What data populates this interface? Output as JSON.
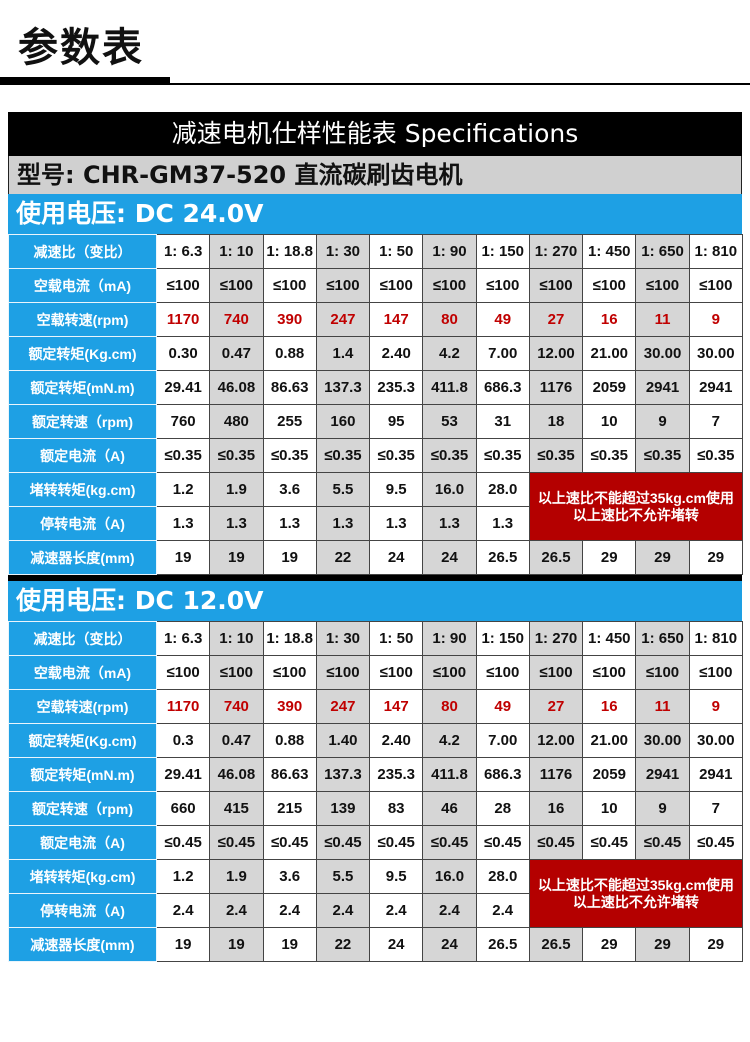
{
  "page_title": "参数表",
  "spec_title": "减速电机仕样性能表 Specifications",
  "model": "型号: CHR-GM37-520  直流碳刷齿电机",
  "sections": [
    {
      "voltage": "使用电压: DC 24.0V",
      "rows": [
        {
          "label": "减速比（变比）",
          "values": [
            "1: 6.3",
            "1: 10",
            "1: 18.8",
            "1: 30",
            "1: 50",
            "1: 90",
            "1: 150",
            "1: 270",
            "1: 450",
            "1: 650",
            "1: 810"
          ]
        },
        {
          "label": "空载电流（mA)",
          "values": [
            "≤100",
            "≤100",
            "≤100",
            "≤100",
            "≤100",
            "≤100",
            "≤100",
            "≤100",
            "≤100",
            "≤100",
            "≤100"
          ]
        },
        {
          "label": "空载转速(rpm)",
          "values": [
            "1170",
            "740",
            "390",
            "247",
            "147",
            "80",
            "49",
            "27",
            "16",
            "11",
            "9"
          ]
        },
        {
          "label": "额定转矩(Kg.cm)",
          "values": [
            "0.30",
            "0.47",
            "0.88",
            "1.4",
            "2.40",
            "4.2",
            "7.00",
            "12.00",
            "21.00",
            "30.00",
            "30.00"
          ]
        },
        {
          "label": "额定转矩(mN.m)",
          "values": [
            "29.41",
            "46.08",
            "86.63",
            "137.3",
            "235.3",
            "411.8",
            "686.3",
            "1176",
            "2059",
            "2941",
            "2941"
          ]
        },
        {
          "label": "额定转速（rpm)",
          "values": [
            "760",
            "480",
            "255",
            "160",
            "95",
            "53",
            "31",
            "18",
            "10",
            "9",
            "7"
          ]
        },
        {
          "label": "额定电流（A)",
          "values": [
            "≤0.35",
            "≤0.35",
            "≤0.35",
            "≤0.35",
            "≤0.35",
            "≤0.35",
            "≤0.35",
            "≤0.35",
            "≤0.35",
            "≤0.35",
            "≤0.35"
          ]
        },
        {
          "label": "堵转转矩(kg.cm)",
          "values": [
            "1.2",
            "1.9",
            "3.6",
            "5.5",
            "9.5",
            "16.0",
            "28.0"
          ]
        },
        {
          "label": "停转电流（A)",
          "values": [
            "1.3",
            "1.3",
            "1.3",
            "1.3",
            "1.3",
            "1.3",
            "1.3"
          ]
        },
        {
          "label": "减速器长度(mm)",
          "values": [
            "19",
            "19",
            "19",
            "22",
            "24",
            "24",
            "26.5",
            "26.5",
            "29",
            "29",
            "29"
          ]
        }
      ],
      "note_line1": "以上速比不能超过35kg.cm使用",
      "note_line2": "以上速比不允许堵转"
    },
    {
      "voltage": "使用电压: DC 12.0V",
      "rows": [
        {
          "label": "减速比（变比）",
          "values": [
            "1: 6.3",
            "1: 10",
            "1: 18.8",
            "1: 30",
            "1: 50",
            "1: 90",
            "1: 150",
            "1: 270",
            "1: 450",
            "1: 650",
            "1: 810"
          ]
        },
        {
          "label": "空载电流（mA)",
          "values": [
            "≤100",
            "≤100",
            "≤100",
            "≤100",
            "≤100",
            "≤100",
            "≤100",
            "≤100",
            "≤100",
            "≤100",
            "≤100"
          ]
        },
        {
          "label": "空载转速(rpm)",
          "values": [
            "1170",
            "740",
            "390",
            "247",
            "147",
            "80",
            "49",
            "27",
            "16",
            "11",
            "9"
          ]
        },
        {
          "label": "额定转矩(Kg.cm)",
          "values": [
            "0.3",
            "0.47",
            "0.88",
            "1.40",
            "2.40",
            "4.2",
            "7.00",
            "12.00",
            "21.00",
            "30.00",
            "30.00"
          ]
        },
        {
          "label": "额定转矩(mN.m)",
          "values": [
            "29.41",
            "46.08",
            "86.63",
            "137.3",
            "235.3",
            "411.8",
            "686.3",
            "1176",
            "2059",
            "2941",
            "2941"
          ]
        },
        {
          "label": "额定转速（rpm)",
          "values": [
            "660",
            "415",
            "215",
            "139",
            "83",
            "46",
            "28",
            "16",
            "10",
            "9",
            "7"
          ]
        },
        {
          "label": "额定电流（A)",
          "values": [
            "≤0.45",
            "≤0.45",
            "≤0.45",
            "≤0.45",
            "≤0.45",
            "≤0.45",
            "≤0.45",
            "≤0.45",
            "≤0.45",
            "≤0.45",
            "≤0.45"
          ]
        },
        {
          "label": "堵转转矩(kg.cm)",
          "values": [
            "1.2",
            "1.9",
            "3.6",
            "5.5",
            "9.5",
            "16.0",
            "28.0"
          ]
        },
        {
          "label": "停转电流（A)",
          "values": [
            "2.4",
            "2.4",
            "2.4",
            "2.4",
            "2.4",
            "2.4",
            "2.4"
          ]
        },
        {
          "label": "减速器长度(mm)",
          "values": [
            "19",
            "19",
            "19",
            "22",
            "24",
            "24",
            "26.5",
            "26.5",
            "29",
            "29",
            "29"
          ]
        }
      ],
      "note_line1": "以上速比不能超过35kg.cm使用",
      "note_line2": "以上速比不允许堵转"
    }
  ],
  "colors": {
    "header_bg": "#000000",
    "model_bg": "#d0d0d0",
    "voltage_bg": "#1ea0e4",
    "label_bg": "#1ea0e4",
    "shaded_cell": "#d6d6d6",
    "red_text": "#c00000",
    "note_bg": "#b40000"
  }
}
